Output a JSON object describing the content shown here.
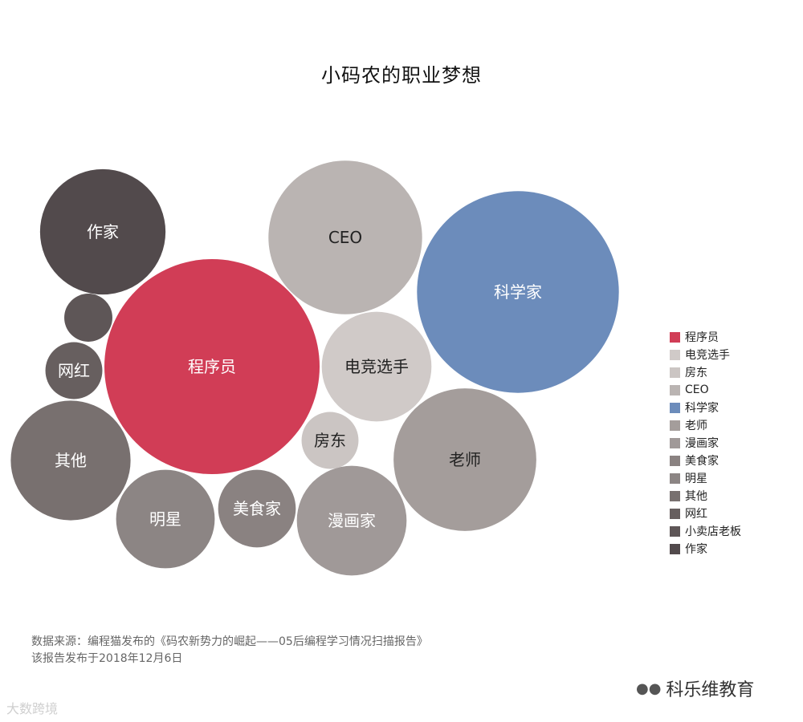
{
  "chart_data": {
    "type": "bubble",
    "title": "小码农的职业梦想",
    "bubbles": [
      {
        "label": "程序员",
        "value": 100,
        "color": "#d13d56",
        "text_color": "#ffffff"
      },
      {
        "label": "科学家",
        "value": 88,
        "color": "#6c8cbb",
        "text_color": "#ffffff"
      },
      {
        "label": "CEO",
        "value": 51,
        "color": "#bab4b2",
        "text_color": "#222222"
      },
      {
        "label": "老师",
        "value": 44,
        "color": "#a49d9b",
        "text_color": "#222222"
      },
      {
        "label": "作家",
        "value": 34,
        "color": "#524a4c",
        "text_color": "#ffffff"
      },
      {
        "label": "其他",
        "value": 31,
        "color": "#78706f",
        "text_color": "#ffffff"
      },
      {
        "label": "漫画家",
        "value": 26,
        "color": "#a09998",
        "text_color": "#ffffff"
      },
      {
        "label": "电竞选手",
        "value": 26,
        "color": "#d0cac8",
        "text_color": "#222222"
      },
      {
        "label": "明星",
        "value": 21,
        "color": "#8c8584",
        "text_color": "#ffffff"
      },
      {
        "label": "美食家",
        "value": 13,
        "color": "#8a8281",
        "text_color": "#ffffff"
      },
      {
        "label": "网红",
        "value": 7,
        "color": "#675f5f",
        "text_color": "#ffffff"
      },
      {
        "label": "房东",
        "value": 7,
        "color": "#cbc5c3",
        "text_color": "#222222"
      },
      {
        "label": "",
        "value": 5,
        "color": "#5e5657",
        "text_color": "#ffffff"
      }
    ],
    "legend": [
      {
        "label": "程序员",
        "color": "#d13d56"
      },
      {
        "label": "电竞选手",
        "color": "#d0cac8"
      },
      {
        "label": "房东",
        "color": "#cbc5c3"
      },
      {
        "label": "CEO",
        "color": "#bab4b2"
      },
      {
        "label": "科学家",
        "color": "#6c8cbb"
      },
      {
        "label": "老师",
        "color": "#a49d9b"
      },
      {
        "label": "漫画家",
        "color": "#a09998"
      },
      {
        "label": "美食家",
        "color": "#8a8281"
      },
      {
        "label": "明星",
        "color": "#8c8584"
      },
      {
        "label": "其他",
        "color": "#78706f"
      },
      {
        "label": "网红",
        "color": "#675f5f"
      },
      {
        "label": "小卖店老板",
        "color": "#5e5657"
      },
      {
        "label": "作家",
        "color": "#524a4c"
      }
    ],
    "legend_position": "right"
  },
  "source": {
    "line1": "数据来源：编程猫发布的《码农新势力的崛起——05后编程学习情况扫描报告》",
    "line2": "该报告发布于2018年12月6日"
  },
  "watermarks": {
    "left": "大数跨境",
    "right": "科乐维教育"
  }
}
